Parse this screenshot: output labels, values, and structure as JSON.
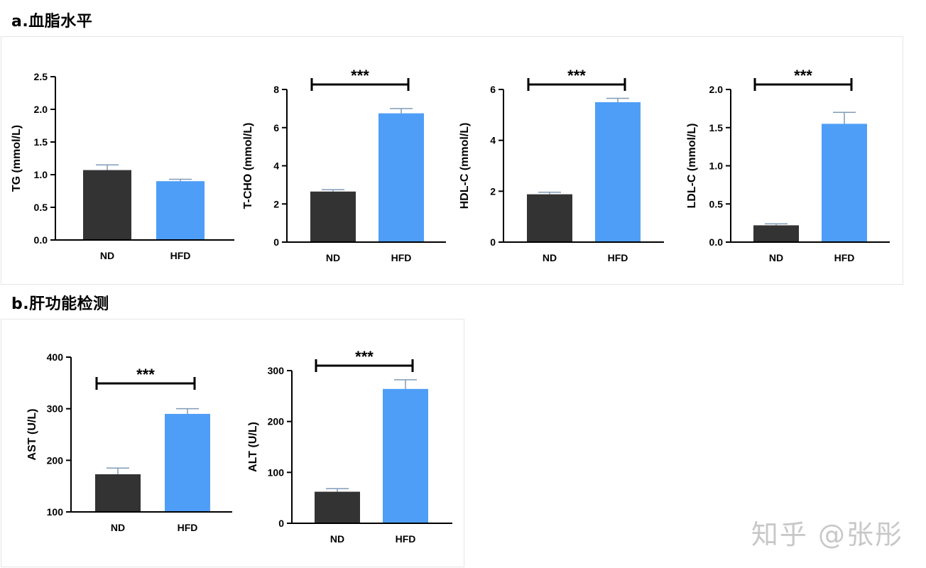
{
  "sections": {
    "a_title": "a.血脂水平",
    "b_title": "b.肝功能检测"
  },
  "watermark": "知乎 @张彤",
  "colors": {
    "nd": "#333333",
    "hfd": "#4e9ef7",
    "error": "#7f9bb8",
    "axis": "#000000"
  },
  "chart_data": [
    {
      "type": "bar",
      "title": "",
      "ylabel": "TG (mmol/L)",
      "categories": [
        "ND",
        "HFD"
      ],
      "values": [
        1.07,
        0.9
      ],
      "errors": [
        0.08,
        0.03
      ],
      "ylim": [
        0,
        2.5
      ],
      "yticks": [
        "0.0",
        "0.5",
        "1.0",
        "1.5",
        "2.0",
        "2.5"
      ],
      "significance": ""
    },
    {
      "type": "bar",
      "title": "",
      "ylabel": "T-CHO (mmol/L)",
      "categories": [
        "ND",
        "HFD"
      ],
      "values": [
        2.65,
        6.75
      ],
      "errors": [
        0.1,
        0.25
      ],
      "ylim": [
        0,
        8
      ],
      "yticks": [
        "0",
        "2",
        "4",
        "6",
        "8"
      ],
      "significance": "***"
    },
    {
      "type": "bar",
      "title": "",
      "ylabel": "HDL-C (mmol/L)",
      "categories": [
        "ND",
        "HFD"
      ],
      "values": [
        1.88,
        5.5
      ],
      "errors": [
        0.08,
        0.15
      ],
      "ylim": [
        0,
        6
      ],
      "yticks": [
        "0",
        "2",
        "4",
        "6"
      ],
      "significance": "***"
    },
    {
      "type": "bar",
      "title": "",
      "ylabel": "LDL-C (mmol/L)",
      "categories": [
        "ND",
        "HFD"
      ],
      "values": [
        0.22,
        1.55
      ],
      "errors": [
        0.02,
        0.15
      ],
      "ylim": [
        0,
        2.0
      ],
      "yticks": [
        "0.0",
        "0.5",
        "1.0",
        "1.5",
        "2.0"
      ],
      "significance": "***"
    },
    {
      "type": "bar",
      "title": "",
      "ylabel": "AST (U/L)",
      "categories": [
        "ND",
        "HFD"
      ],
      "values": [
        173,
        290
      ],
      "errors": [
        12,
        10
      ],
      "ylim": [
        100,
        400
      ],
      "yticks": [
        "100",
        "200",
        "300",
        "400"
      ],
      "significance": "***"
    },
    {
      "type": "bar",
      "title": "",
      "ylabel": "ALT (U/L)",
      "categories": [
        "ND",
        "HFD"
      ],
      "values": [
        62,
        264
      ],
      "errors": [
        6,
        18
      ],
      "ylim": [
        0,
        300
      ],
      "yticks": [
        "0",
        "100",
        "200",
        "300"
      ],
      "significance": "***"
    }
  ]
}
